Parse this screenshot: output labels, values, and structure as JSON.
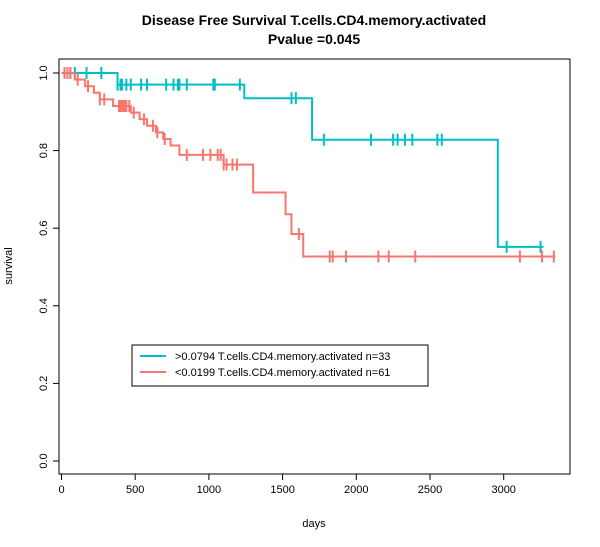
{
  "chart_data": {
    "type": "line",
    "title": "Disease Free Survival T.cells.CD4.memory.activated",
    "subtitle": "Pvalue =0.045",
    "xlabel": "days",
    "ylabel": "survival",
    "xlim": [
      0,
      3350
    ],
    "ylim": [
      0,
      1.0
    ],
    "xticks": [
      0,
      500,
      1000,
      1500,
      2000,
      2500,
      3000
    ],
    "yticks": [
      0.0,
      0.2,
      0.4,
      0.6,
      0.8,
      1.0
    ],
    "legend_position": "bottom-left",
    "series": [
      {
        "name": ">0.0794 T.cells.CD4.memory.activated n=33",
        "color": "#00BFC4",
        "steps": [
          [
            0,
            1.0
          ],
          [
            380,
            0.97
          ],
          [
            1240,
            0.935
          ],
          [
            1700,
            0.828
          ],
          [
            2960,
            0.552
          ],
          [
            3270,
            0.552
          ]
        ],
        "censor": [
          60,
          90,
          170,
          270,
          380,
          400,
          410,
          440,
          470,
          540,
          580,
          710,
          760,
          790,
          800,
          850,
          1030,
          1040,
          1210,
          1560,
          1590,
          1780,
          2100,
          2250,
          2280,
          2330,
          2380,
          2550,
          2580,
          3020,
          3250
        ]
      },
      {
        "name": "<0.0199 T.cells.CD4.memory.activated n=61",
        "color": "#F8766D",
        "steps": [
          [
            0,
            1.0
          ],
          [
            90,
            0.983
          ],
          [
            160,
            0.966
          ],
          [
            220,
            0.949
          ],
          [
            260,
            0.932
          ],
          [
            350,
            0.915
          ],
          [
            470,
            0.898
          ],
          [
            530,
            0.881
          ],
          [
            580,
            0.864
          ],
          [
            640,
            0.847
          ],
          [
            690,
            0.83
          ],
          [
            740,
            0.813
          ],
          [
            800,
            0.789
          ],
          [
            1100,
            0.764
          ],
          [
            1300,
            0.692
          ],
          [
            1520,
            0.636
          ],
          [
            1560,
            0.585
          ],
          [
            1640,
            0.527
          ],
          [
            3350,
            0.527
          ]
        ],
        "censor": [
          20,
          40,
          60,
          110,
          180,
          260,
          290,
          390,
          400,
          410,
          420,
          430,
          440,
          460,
          490,
          560,
          620,
          650,
          700,
          850,
          960,
          1010,
          1060,
          1080,
          1100,
          1120,
          1160,
          1190,
          1610,
          1820,
          1840,
          1930,
          2150,
          2220,
          2400,
          3110,
          3260,
          3340
        ]
      }
    ]
  }
}
